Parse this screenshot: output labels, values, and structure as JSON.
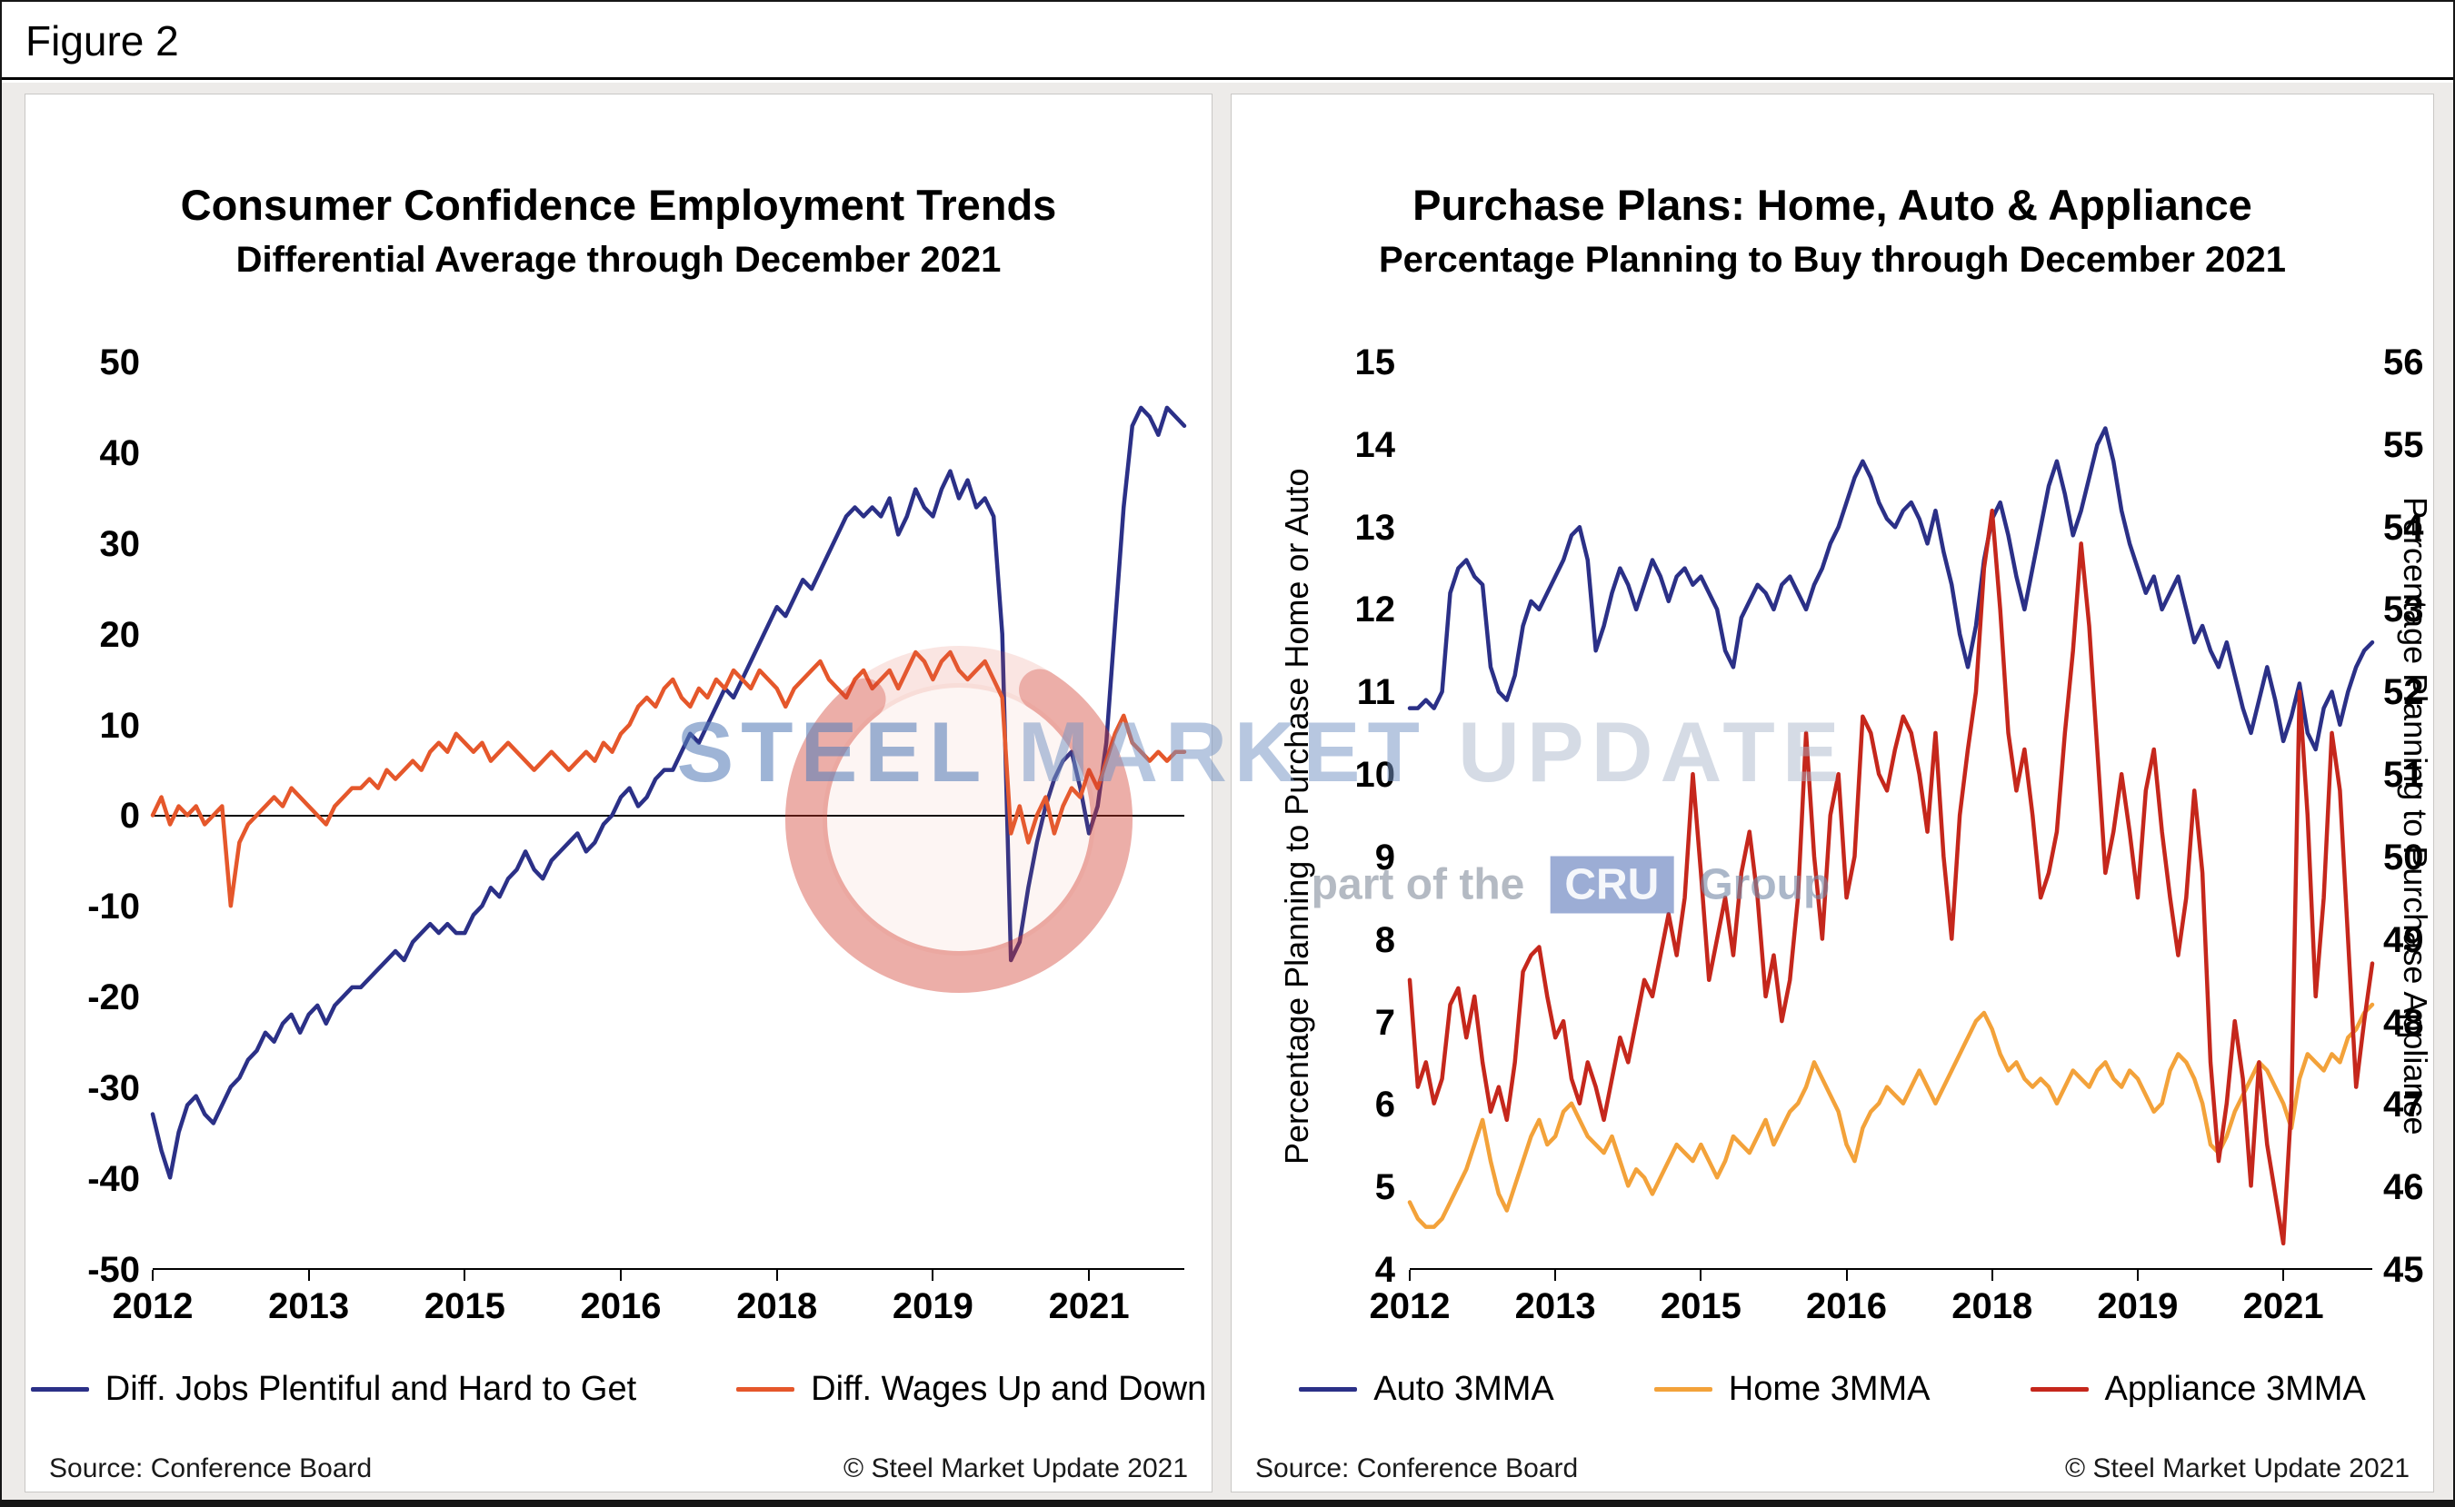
{
  "figure_label": "Figure 2",
  "watermark": {
    "word1": "STEEL",
    "word2": " MARKET ",
    "word3": "UPDATE",
    "line2_prefix": "part of the",
    "line2_logo": "CRU",
    "line2_suffix": "Group",
    "crescent_color": "#d53f2a"
  },
  "chart_data": [
    {
      "type": "line",
      "title": "Consumer Confidence Employment Trends",
      "subtitle": "Differential Average through December 2021",
      "source": "Source: Conference Board",
      "copyright": "© Steel Market Update 2021",
      "ylim": [
        -50,
        50
      ],
      "y_ticks": [
        50,
        40,
        30,
        20,
        10,
        0,
        -10,
        -20,
        -30,
        -40,
        -50
      ],
      "x_tick_labels": [
        "2012",
        "2013",
        "2015",
        "2016",
        "2018",
        "2019",
        "2021"
      ],
      "x_tick_months": [
        0,
        18,
        36,
        54,
        72,
        90,
        108
      ],
      "grid": false,
      "zero_line": true,
      "legend_position": "bottom",
      "series": [
        {
          "name": "Diff. Jobs Plentiful and Hard to Get",
          "color": "#2b3087",
          "axis": "left",
          "values": [
            -33,
            -37,
            -40,
            -35,
            -32,
            -31,
            -33,
            -34,
            -32,
            -30,
            -29,
            -27,
            -26,
            -24,
            -25,
            -23,
            -22,
            -24,
            -22,
            -21,
            -23,
            -21,
            -20,
            -19,
            -19,
            -18,
            -17,
            -16,
            -15,
            -16,
            -14,
            -13,
            -12,
            -13,
            -12,
            -13,
            -13,
            -11,
            -10,
            -8,
            -9,
            -7,
            -6,
            -4,
            -6,
            -7,
            -5,
            -4,
            -3,
            -2,
            -4,
            -3,
            -1,
            0,
            2,
            3,
            1,
            2,
            4,
            5,
            5,
            7,
            9,
            8,
            10,
            12,
            14,
            13,
            15,
            17,
            19,
            21,
            23,
            22,
            24,
            26,
            25,
            27,
            29,
            31,
            33,
            34,
            33,
            34,
            33,
            35,
            31,
            33,
            36,
            34,
            33,
            36,
            38,
            35,
            37,
            34,
            35,
            33,
            20,
            -16,
            -14,
            -8,
            -3,
            1,
            4,
            6,
            7,
            3,
            -2,
            1,
            8,
            21,
            34,
            43,
            45,
            44,
            42,
            45,
            44,
            43
          ]
        },
        {
          "name": "Diff. Wages Up and Down",
          "color": "#e5572b",
          "axis": "left",
          "values": [
            0,
            2,
            -1,
            1,
            0,
            1,
            -1,
            0,
            1,
            -10,
            -3,
            -1,
            0,
            1,
            2,
            1,
            3,
            2,
            1,
            0,
            -1,
            1,
            2,
            3,
            3,
            4,
            3,
            5,
            4,
            5,
            6,
            5,
            7,
            8,
            7,
            9,
            8,
            7,
            8,
            6,
            7,
            8,
            7,
            6,
            5,
            6,
            7,
            6,
            5,
            6,
            7,
            6,
            8,
            7,
            9,
            10,
            12,
            13,
            12,
            14,
            15,
            13,
            12,
            14,
            13,
            15,
            14,
            16,
            15,
            14,
            16,
            15,
            14,
            12,
            14,
            15,
            16,
            17,
            15,
            14,
            13,
            15,
            16,
            14,
            15,
            16,
            14,
            16,
            18,
            17,
            15,
            17,
            18,
            16,
            15,
            16,
            17,
            15,
            13,
            -2,
            1,
            -3,
            0,
            2,
            -2,
            1,
            3,
            2,
            5,
            3,
            6,
            9,
            11,
            8,
            7,
            6,
            7,
            6,
            7,
            7
          ]
        }
      ]
    },
    {
      "type": "line",
      "title": "Purchase Plans: Home, Auto & Appliance",
      "subtitle": "Percentage Planning to Buy through December 2021",
      "source": "Source: Conference Board",
      "copyright": "© Steel Market Update 2021",
      "ylabel_left": "Percentage Planning to Purchase Home or Auto",
      "ylabel_right": "Percentage Planning to Purchase Appliance",
      "ylim": [
        4,
        15
      ],
      "ylim_right": [
        45,
        56
      ],
      "y_ticks_left": [
        15,
        14,
        13,
        12,
        11,
        10,
        9,
        8,
        7,
        6,
        5,
        4
      ],
      "y_ticks_right": [
        56,
        55,
        54,
        53,
        52,
        51,
        50,
        49,
        48,
        47,
        46,
        45
      ],
      "x_tick_labels": [
        "2012",
        "2013",
        "2015",
        "2016",
        "2018",
        "2019",
        "2021"
      ],
      "x_tick_months": [
        0,
        18,
        36,
        54,
        72,
        90,
        108
      ],
      "grid": false,
      "zero_line": false,
      "legend_position": "bottom",
      "series": [
        {
          "name": "Auto 3MMA",
          "color": "#2b3087",
          "axis": "left",
          "values": [
            10.8,
            10.8,
            10.9,
            10.8,
            11.0,
            12.2,
            12.5,
            12.6,
            12.4,
            12.3,
            11.3,
            11.0,
            10.9,
            11.2,
            11.8,
            12.1,
            12.0,
            12.2,
            12.4,
            12.6,
            12.9,
            13.0,
            12.6,
            11.5,
            11.8,
            12.2,
            12.5,
            12.3,
            12.0,
            12.3,
            12.6,
            12.4,
            12.1,
            12.4,
            12.5,
            12.3,
            12.4,
            12.2,
            12.0,
            11.5,
            11.3,
            11.9,
            12.1,
            12.3,
            12.2,
            12.0,
            12.3,
            12.4,
            12.2,
            12.0,
            12.3,
            12.5,
            12.8,
            13.0,
            13.3,
            13.6,
            13.8,
            13.6,
            13.3,
            13.1,
            13.0,
            13.2,
            13.3,
            13.1,
            12.8,
            13.2,
            12.7,
            12.3,
            11.7,
            11.3,
            11.8,
            12.6,
            13.1,
            13.3,
            12.9,
            12.4,
            12.0,
            12.5,
            13.0,
            13.5,
            13.8,
            13.4,
            12.9,
            13.2,
            13.6,
            14.0,
            14.2,
            13.8,
            13.2,
            12.8,
            12.5,
            12.2,
            12.4,
            12.0,
            12.2,
            12.4,
            12.0,
            11.6,
            11.8,
            11.5,
            11.3,
            11.6,
            11.2,
            10.8,
            10.5,
            10.9,
            11.3,
            10.9,
            10.4,
            10.7,
            11.1,
            10.5,
            10.3,
            10.8,
            11.0,
            10.6,
            11.0,
            11.3,
            11.5,
            11.6
          ]
        },
        {
          "name": "Home 3MMA",
          "color": "#f3a23a",
          "axis": "left",
          "values": [
            4.8,
            4.6,
            4.5,
            4.5,
            4.6,
            4.8,
            5.0,
            5.2,
            5.5,
            5.8,
            5.3,
            4.9,
            4.7,
            5.0,
            5.3,
            5.6,
            5.8,
            5.5,
            5.6,
            5.9,
            6.0,
            5.8,
            5.6,
            5.5,
            5.4,
            5.6,
            5.3,
            5.0,
            5.2,
            5.1,
            4.9,
            5.1,
            5.3,
            5.5,
            5.4,
            5.3,
            5.5,
            5.3,
            5.1,
            5.3,
            5.6,
            5.5,
            5.4,
            5.6,
            5.8,
            5.5,
            5.7,
            5.9,
            6.0,
            6.2,
            6.5,
            6.3,
            6.1,
            5.9,
            5.5,
            5.3,
            5.7,
            5.9,
            6.0,
            6.2,
            6.1,
            6.0,
            6.2,
            6.4,
            6.2,
            6.0,
            6.2,
            6.4,
            6.6,
            6.8,
            7.0,
            7.1,
            6.9,
            6.6,
            6.4,
            6.5,
            6.3,
            6.2,
            6.3,
            6.2,
            6.0,
            6.2,
            6.4,
            6.3,
            6.2,
            6.4,
            6.5,
            6.3,
            6.2,
            6.4,
            6.3,
            6.1,
            5.9,
            6.0,
            6.4,
            6.6,
            6.5,
            6.3,
            6.0,
            5.5,
            5.4,
            5.6,
            5.9,
            6.1,
            6.3,
            6.5,
            6.4,
            6.2,
            6.0,
            5.7,
            6.3,
            6.6,
            6.5,
            6.4,
            6.6,
            6.5,
            6.8,
            6.9,
            7.1,
            7.2
          ]
        },
        {
          "name": "Appliance 3MMA",
          "color": "#c5271c",
          "axis": "right",
          "values": [
            48.5,
            47.2,
            47.5,
            47.0,
            47.3,
            48.2,
            48.4,
            47.8,
            48.3,
            47.5,
            46.9,
            47.2,
            46.8,
            47.5,
            48.6,
            48.8,
            48.9,
            48.3,
            47.8,
            48.0,
            47.3,
            47.0,
            47.5,
            47.2,
            46.8,
            47.3,
            47.8,
            47.5,
            48.0,
            48.5,
            48.3,
            48.8,
            49.3,
            48.8,
            49.5,
            51.0,
            49.8,
            48.5,
            49.0,
            49.5,
            48.8,
            49.8,
            50.3,
            49.5,
            48.3,
            48.8,
            48.0,
            48.5,
            49.5,
            51.5,
            50.0,
            49.0,
            50.5,
            51.0,
            49.5,
            50.0,
            51.7,
            51.5,
            51.0,
            50.8,
            51.3,
            51.7,
            51.5,
            51.0,
            50.3,
            51.5,
            50.0,
            49.0,
            50.5,
            51.3,
            52.0,
            53.5,
            54.2,
            53.0,
            51.5,
            50.8,
            51.3,
            50.5,
            49.5,
            49.8,
            50.3,
            51.5,
            52.5,
            53.8,
            52.8,
            51.3,
            49.8,
            50.3,
            51.0,
            50.3,
            49.5,
            50.8,
            51.3,
            50.3,
            49.5,
            48.8,
            49.5,
            50.8,
            49.8,
            47.5,
            46.3,
            47.0,
            48.0,
            47.3,
            46.0,
            47.5,
            46.5,
            45.9,
            45.3,
            47.0,
            52.0,
            50.5,
            48.3,
            49.5,
            51.5,
            50.8,
            49.0,
            47.2,
            48.0,
            48.7
          ]
        }
      ]
    }
  ]
}
